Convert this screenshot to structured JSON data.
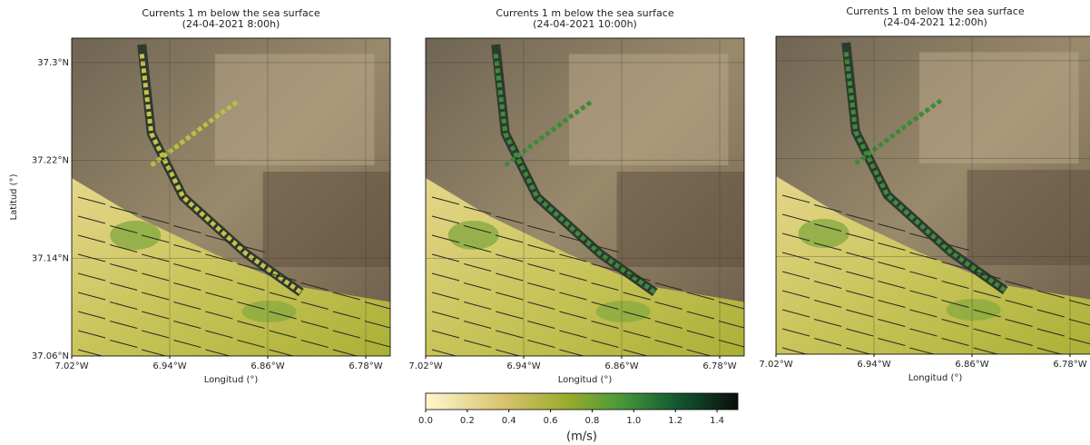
{
  "panels": [
    {
      "title": "Currents 1 m below the sea surface",
      "time": "(24-04-2021 8:00h)"
    },
    {
      "title": "Currents 1 m below the sea surface",
      "time": "(24-04-2021 10:00h)"
    },
    {
      "title": "Currents 1 m below the sea surface",
      "time": "(24-04-2021 12:00h)"
    }
  ],
  "axes": {
    "xlim": [
      -7.02,
      -6.76
    ],
    "ylim": [
      37.06,
      37.32
    ],
    "xticks": [
      {
        "value": -7.02,
        "label": "7.02°W"
      },
      {
        "value": -6.94,
        "label": "6.94°W"
      },
      {
        "value": -6.86,
        "label": "6.86°W"
      },
      {
        "value": -6.78,
        "label": "6.78°W"
      }
    ],
    "yticks": [
      {
        "value": 37.3,
        "label": "37.3°N"
      },
      {
        "value": 37.22,
        "label": "37.22°N"
      },
      {
        "value": 37.14,
        "label": "37.14°N"
      },
      {
        "value": 37.06,
        "label": "37.06°N"
      }
    ],
    "xlabel": "Longitud (°)",
    "ylabel": "Latitud (°)"
  },
  "colorbar": {
    "label": "(m/s)",
    "lim": [
      0,
      1.5
    ],
    "ticks": [
      {
        "value": 0,
        "label": "0.0"
      },
      0.2,
      0.4,
      0.6,
      0.8,
      {
        "value": 1,
        "label": "1.0"
      },
      1.2,
      1.4
    ]
  }
}
